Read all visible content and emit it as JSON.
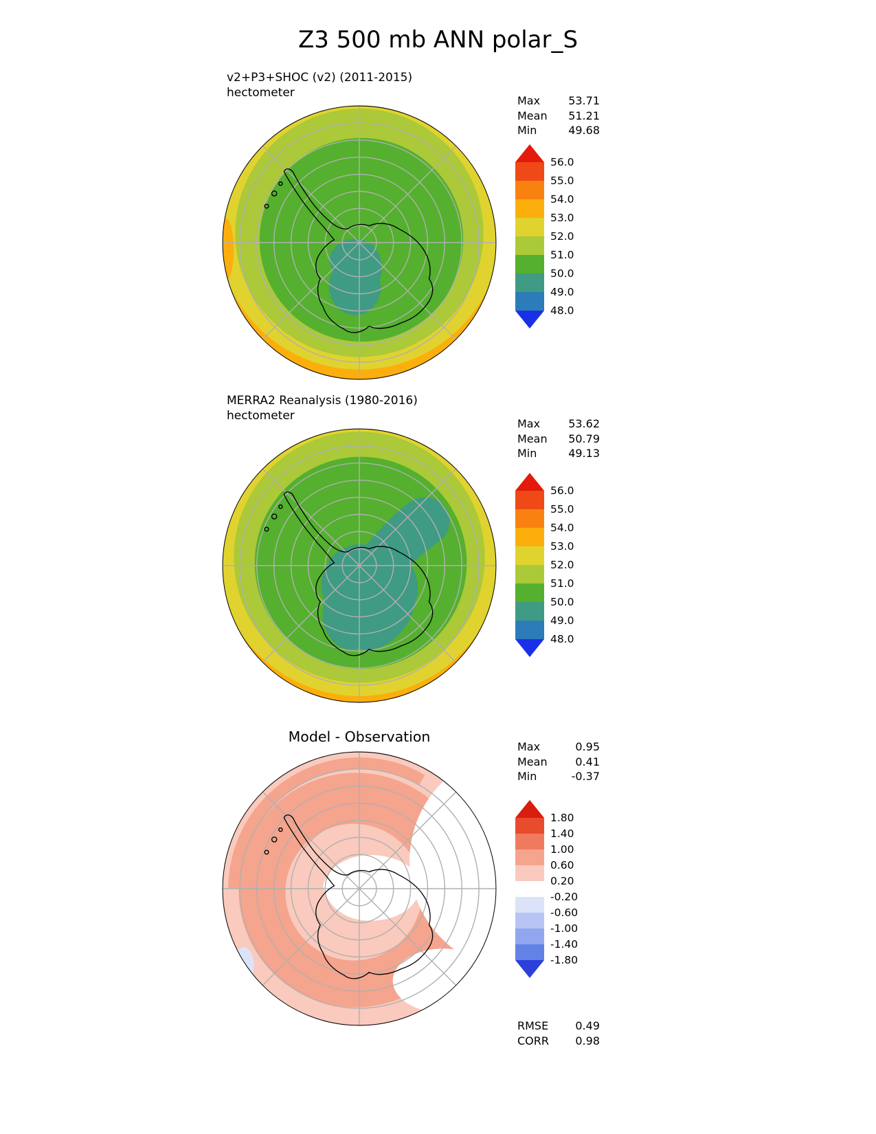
{
  "title": "Z3 500 mb ANN polar_S",
  "chart_data": [
    {
      "type": "heatmap",
      "projection": "south_polar_stereographic",
      "title": "v2+P3+SHOC (v2) (2011-2015)",
      "units": "hectometer",
      "stats": [
        {
          "label": "Max",
          "value": "53.71"
        },
        {
          "label": "Mean",
          "value": "51.21"
        },
        {
          "label": "Min",
          "value": "49.68"
        }
      ],
      "colorbar": {
        "tick_labels": [
          "56.0",
          "55.0",
          "54.0",
          "53.0",
          "52.0",
          "51.0",
          "50.0",
          "49.0",
          "48.0"
        ],
        "band_colors": [
          "#ef4917",
          "#f98110",
          "#fcae0c",
          "#e0d32f",
          "#abc938",
          "#54b02e",
          "#3f9b83",
          "#2b7cb9"
        ],
        "over_color": "#e31a0c",
        "under_color": "#1a30e8"
      }
    },
    {
      "type": "heatmap",
      "projection": "south_polar_stereographic",
      "title": "MERRA2 Reanalysis (1980-2016)",
      "units": "hectometer",
      "stats": [
        {
          "label": "Max",
          "value": "53.62"
        },
        {
          "label": "Mean",
          "value": "50.79"
        },
        {
          "label": "Min",
          "value": "49.13"
        }
      ],
      "colorbar": {
        "tick_labels": [
          "56.0",
          "55.0",
          "54.0",
          "53.0",
          "52.0",
          "51.0",
          "50.0",
          "49.0",
          "48.0"
        ],
        "band_colors": [
          "#ef4917",
          "#f98110",
          "#fcae0c",
          "#e0d32f",
          "#abc938",
          "#54b02e",
          "#3f9b83",
          "#2b7cb9"
        ],
        "over_color": "#e31a0c",
        "under_color": "#1a30e8"
      }
    },
    {
      "type": "heatmap",
      "projection": "south_polar_stereographic",
      "title": "Model - Observation",
      "units": "",
      "stats": [
        {
          "label": "Max",
          "value": "0.95"
        },
        {
          "label": "Mean",
          "value": "0.41"
        },
        {
          "label": "Min",
          "value": "-0.37"
        }
      ],
      "colorbar": {
        "tick_labels": [
          "1.80",
          "1.40",
          "1.00",
          "0.60",
          "0.20",
          "-0.20",
          "-0.60",
          "-1.00",
          "-1.40",
          "-1.80"
        ],
        "band_colors": [
          "#e94b2d",
          "#f07a5e",
          "#f5a48d",
          "#f9cabd",
          "#ffffff",
          "#dce3f8",
          "#b8c5f4",
          "#90a7ef",
          "#6382e8"
        ],
        "over_color": "#d91d0e",
        "under_color": "#2c40da"
      },
      "metrics": [
        {
          "label": "RMSE",
          "value": "0.49"
        },
        {
          "label": "CORR",
          "value": "0.98"
        }
      ]
    }
  ]
}
